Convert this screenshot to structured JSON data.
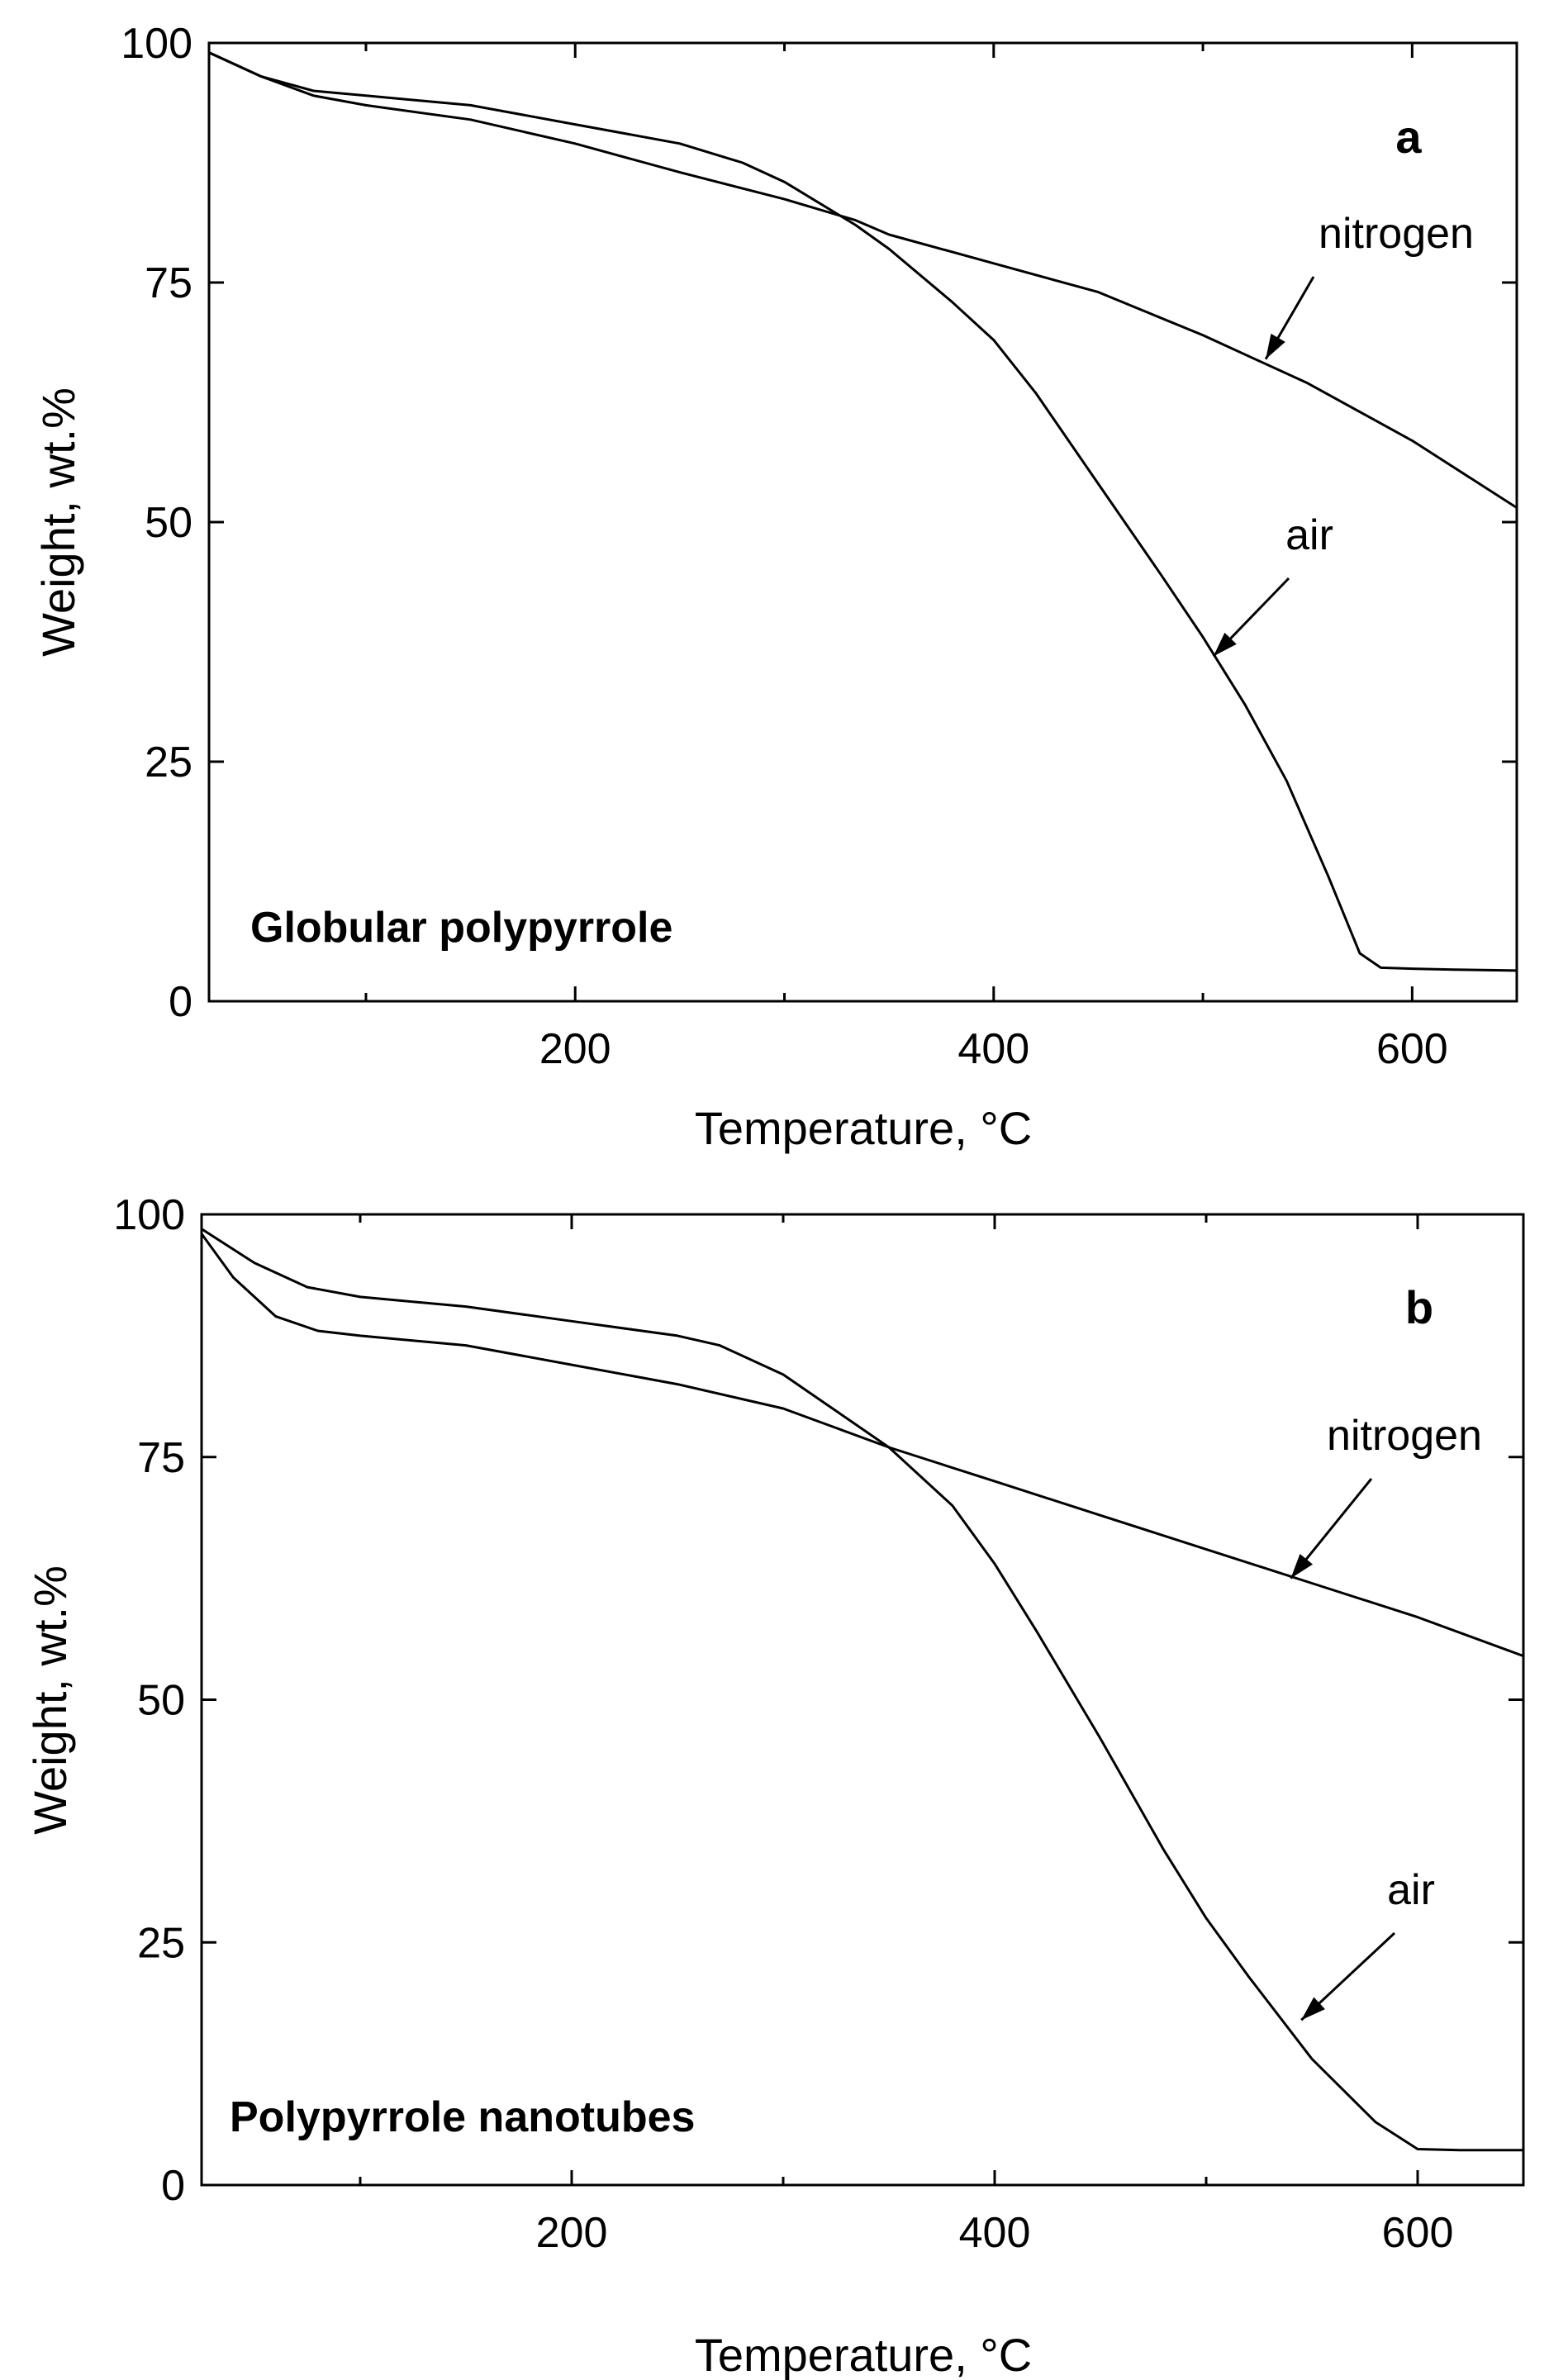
{
  "colors": {
    "line": "#000000",
    "background": "#ffffff"
  },
  "chart_data": [
    {
      "type": "line",
      "panel_label": "a",
      "title": "Globular polypyrrole",
      "xlabel": "Temperature, °C",
      "ylabel": "Weight, wt.%",
      "xlim": [
        25,
        650
      ],
      "ylim": [
        0,
        100
      ],
      "xticks": [
        200,
        400,
        600
      ],
      "yticks": [
        0,
        25,
        50,
        75,
        100
      ],
      "x_tick_labels": [
        "200",
        "400",
        "600"
      ],
      "y_tick_labels": [
        "0",
        "25",
        "50",
        "75",
        "100"
      ],
      "series": [
        {
          "name": "nitrogen",
          "x": [
            25,
            50,
            75,
            100,
            150,
            200,
            250,
            300,
            334,
            350,
            400,
            450,
            500,
            550,
            600,
            650
          ],
          "y": [
            99,
            96.5,
            94.5,
            93.5,
            92,
            89.5,
            86.5,
            83.7,
            81.5,
            80,
            77,
            74,
            69.5,
            64.5,
            58.5,
            51.5
          ]
        },
        {
          "name": "air",
          "x": [
            25,
            50,
            75,
            100,
            150,
            200,
            250,
            280,
            300,
            334,
            350,
            380,
            400,
            420,
            450,
            480,
            500,
            520,
            540,
            560,
            575,
            585,
            600,
            620,
            650
          ],
          "y": [
            99,
            96.5,
            95,
            94.5,
            93.5,
            91.5,
            89.5,
            87.5,
            85.5,
            81,
            78.5,
            73,
            69,
            63.5,
            54,
            44.5,
            38,
            31,
            23,
            13,
            5,
            3.5,
            3.4,
            3.3,
            3.2
          ]
        }
      ],
      "annotations": [
        {
          "text": "nitrogen",
          "points_to": [
            530,
            67
          ]
        },
        {
          "text": "air",
          "points_to": [
            505,
            36
          ]
        }
      ]
    },
    {
      "type": "line",
      "panel_label": "b",
      "title": "Polypyrrole nanotubes",
      "xlabel": "Temperature, °C",
      "ylabel": "Weight, wt.%",
      "xlim": [
        25,
        650
      ],
      "ylim": [
        0,
        100
      ],
      "xticks": [
        200,
        400,
        600
      ],
      "yticks": [
        0,
        25,
        50,
        75,
        100
      ],
      "x_tick_labels": [
        "200",
        "400",
        "600"
      ],
      "y_tick_labels": [
        "0",
        "25",
        "50",
        "75",
        "100"
      ],
      "series": [
        {
          "name": "nitrogen",
          "x": [
            25,
            40,
            60,
            80,
            100,
            150,
            200,
            250,
            300,
            350,
            400,
            450,
            500,
            550,
            600,
            650
          ],
          "y": [
            98,
            93.5,
            89.5,
            88,
            87.5,
            86.5,
            84.5,
            82.5,
            80,
            76,
            72.5,
            69,
            65.5,
            62,
            58.5,
            54.5
          ]
        },
        {
          "name": "air",
          "x": [
            25,
            50,
            75,
            100,
            150,
            200,
            250,
            270,
            300,
            320,
            350,
            380,
            400,
            420,
            450,
            480,
            500,
            520,
            550,
            580,
            600,
            620,
            650
          ],
          "y": [
            98.5,
            95,
            92.5,
            91.5,
            90.5,
            89,
            87.5,
            86.5,
            83.5,
            80.5,
            76,
            70,
            64,
            57,
            46,
            34.5,
            27.5,
            21.5,
            13,
            6.5,
            3.7,
            3.6,
            3.6
          ]
        }
      ],
      "annotations": [
        {
          "text": "nitrogen",
          "points_to": [
            540,
            62.5
          ]
        },
        {
          "text": "air",
          "points_to": [
            545,
            17
          ]
        }
      ]
    }
  ]
}
